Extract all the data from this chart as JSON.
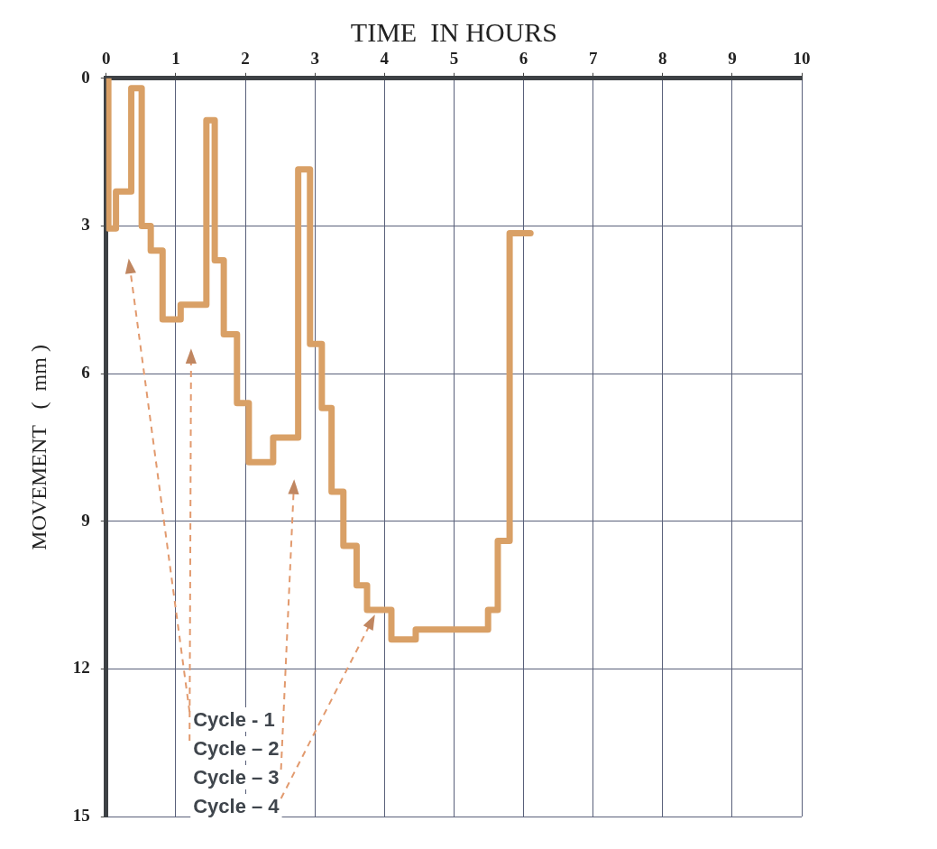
{
  "chart_data": {
    "type": "step",
    "xlabel": "TIME  IN HOURS",
    "ylabel": "MOVEMENT   (  mm )",
    "x": [
      0.03,
      0.14,
      0.36,
      0.51,
      0.64,
      0.81,
      1.07,
      1.44,
      1.56,
      1.69,
      1.88,
      2.05,
      2.4,
      2.76,
      2.93,
      3.1,
      3.24,
      3.41,
      3.6,
      3.75,
      4.1,
      4.45,
      5.49,
      5.63,
      5.8,
      5.96,
      6.1
    ],
    "values": [
      0,
      3.05,
      2.3,
      0.2,
      3.0,
      3.5,
      4.9,
      4.6,
      0.85,
      3.7,
      5.2,
      6.6,
      7.8,
      7.3,
      1.85,
      5.4,
      6.7,
      8.4,
      9.5,
      10.3,
      10.8,
      11.4,
      11.2,
      10.8,
      9.4,
      3.15,
      3.15
    ],
    "color": "#d9a066",
    "xlim": [
      0,
      10
    ],
    "xticks": [
      0,
      1,
      2,
      3,
      4,
      5,
      6,
      7,
      8,
      9,
      10
    ],
    "ylim": [
      15,
      0
    ],
    "yticks": [
      0,
      3,
      6,
      9,
      12,
      15
    ],
    "grid": true,
    "legend": false,
    "marker": "none",
    "line_style": "solid",
    "annotations": [
      "Cycle - 1",
      "Cycle – 2",
      "Cycle – 3",
      "Cycle – 4"
    ]
  }
}
